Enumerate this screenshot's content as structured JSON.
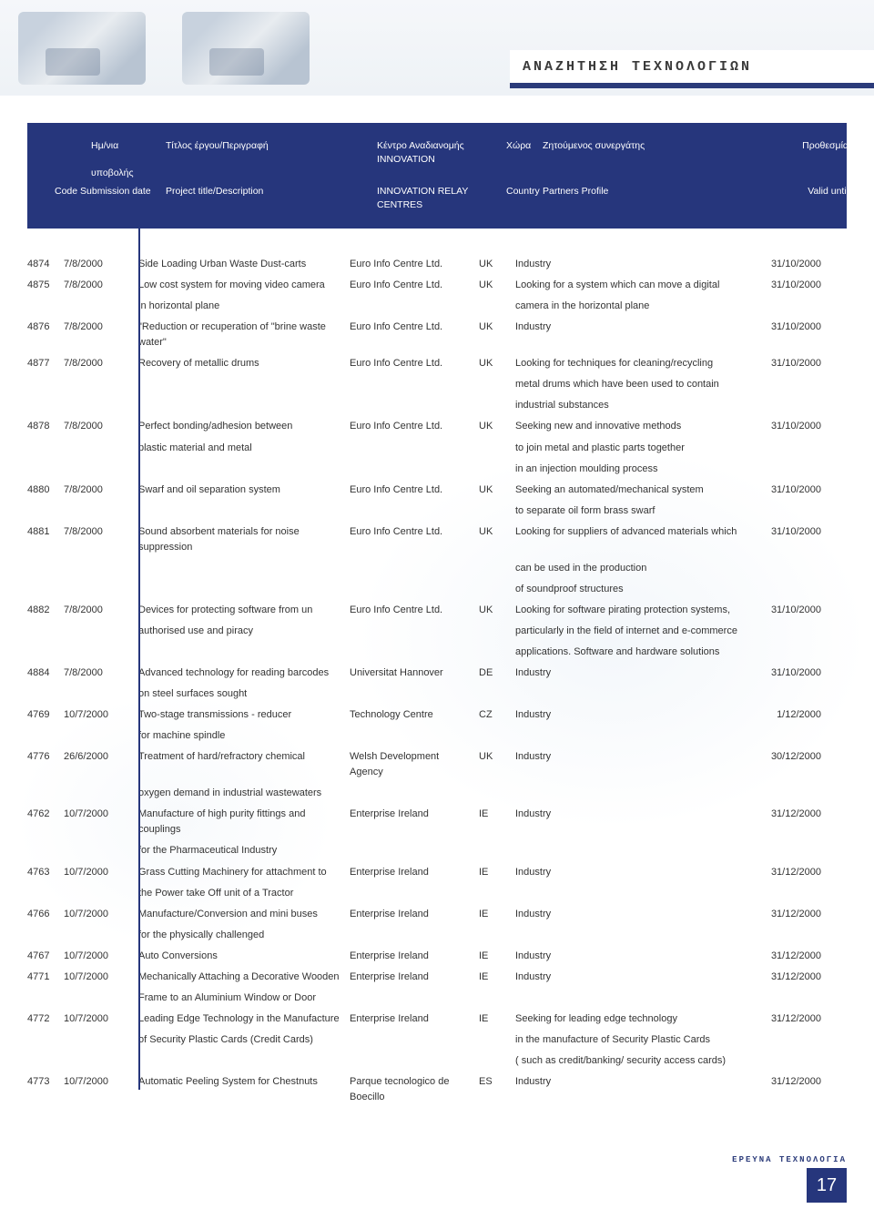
{
  "topTitle": "ΑΝΑΖΗΤΗΣΗ ΤΕΧΝΟΛΟΓΙΩΝ",
  "header": {
    "gr": {
      "codeDate1": "Ημ/νια",
      "codeDate2": "υποβολής",
      "title": "Τίτλος έργου/Περιγραφή",
      "centre": "Κέντρο Αναδιανομής INNOVATION",
      "country": "Χώρα",
      "profile": "Ζητούμενος συνεργάτης",
      "valid": "Προθεσμία"
    },
    "en": {
      "codeDate": "Code Submission date",
      "title": "Project title/Description",
      "centre": "INNOVATION RELAY CENTRES",
      "country": "Country",
      "profile": "Partners Profile",
      "valid": "Valid until"
    }
  },
  "rows": [
    {
      "code": "4874",
      "date": "7/8/2000",
      "title": [
        "Side Loading Urban Waste Dust-carts"
      ],
      "centre": "Euro Info Centre Ltd.",
      "country": "UK",
      "profile": [
        "Industry"
      ],
      "valid": "31/10/2000"
    },
    {
      "code": "4875",
      "date": "7/8/2000",
      "title": [
        "Low cost system for moving video camera",
        "in horizontal plane"
      ],
      "centre": "Euro Info Centre Ltd.",
      "country": "UK",
      "profile": [
        "Looking for a system which can move a digital",
        "camera in the horizontal plane"
      ],
      "valid": "31/10/2000"
    },
    {
      "code": "4876",
      "date": "7/8/2000",
      "title": [
        "\"Reduction or recuperation of \"brine waste water\""
      ],
      "centre": "Euro Info Centre Ltd.",
      "country": "UK",
      "profile": [
        "Industry"
      ],
      "valid": "31/10/2000"
    },
    {
      "code": "4877",
      "date": "7/8/2000",
      "title": [
        "Recovery of metallic drums"
      ],
      "centre": "Euro Info Centre Ltd.",
      "country": "UK",
      "profile": [
        "Looking for techniques for cleaning/recycling",
        "metal drums which have been used to contain",
        "industrial substances"
      ],
      "valid": "31/10/2000"
    },
    {
      "code": "4878",
      "date": "7/8/2000",
      "title": [
        "Perfect bonding/adhesion between",
        "plastic material and metal"
      ],
      "centre": "Euro Info Centre Ltd.",
      "country": "UK",
      "profile": [
        "Seeking new and innovative methods",
        "to join metal and plastic parts together",
        "in an injection moulding process"
      ],
      "valid": "31/10/2000"
    },
    {
      "code": "4880",
      "date": "7/8/2000",
      "title": [
        "Swarf and oil separation system"
      ],
      "centre": "Euro Info Centre Ltd.",
      "country": "UK",
      "profile": [
        "Seeking an automated/mechanical system",
        "to separate oil form brass swarf"
      ],
      "valid": "31/10/2000"
    },
    {
      "code": "4881",
      "date": "7/8/2000",
      "title": [
        "Sound absorbent materials for noise suppression"
      ],
      "centre": "Euro Info Centre Ltd.",
      "country": "UK",
      "profile": [
        "Looking for suppliers of advanced materials which",
        "can be used in the production",
        "of soundproof structures"
      ],
      "valid": "31/10/2000"
    },
    {
      "code": "4882",
      "date": "7/8/2000",
      "title": [
        "Devices for protecting software from un",
        "authorised use and piracy"
      ],
      "centre": "Euro Info Centre Ltd.",
      "country": "UK",
      "profile": [
        "Looking for software pirating protection systems,",
        "particularly in the field of internet and e-commerce",
        "applications. Software and hardware solutions"
      ],
      "valid": "31/10/2000"
    },
    {
      "code": "4884",
      "date": "7/8/2000",
      "title": [
        "Advanced technology for reading barcodes",
        "on steel surfaces sought"
      ],
      "centre": "Universitat Hannover",
      "country": "DE",
      "profile": [
        "Industry"
      ],
      "valid": "31/10/2000"
    },
    {
      "code": "4769",
      "date": "10/7/2000",
      "title": [
        "Two-stage transmissions - reducer",
        "for machine spindle"
      ],
      "centre": "Technology Centre",
      "country": "CZ",
      "profile": [
        "Industry"
      ],
      "valid": "1/12/2000"
    },
    {
      "code": "4776",
      "date": "26/6/2000",
      "title": [
        "Treatment of hard/refractory chemical",
        "oxygen demand in industrial wastewaters"
      ],
      "centre": "Welsh Development Agency",
      "country": "UK",
      "profile": [
        "Industry"
      ],
      "valid": "30/12/2000"
    },
    {
      "code": "4762",
      "date": "10/7/2000",
      "title": [
        "Manufacture of high purity fittings and couplings",
        "for the Pharmaceutical Industry"
      ],
      "centre": "Enterprise Ireland",
      "country": "IE",
      "profile": [
        "Industry"
      ],
      "valid": "31/12/2000"
    },
    {
      "code": "4763",
      "date": "10/7/2000",
      "title": [
        "Grass Cutting Machinery for attachment to",
        "the Power take Off unit of a Tractor"
      ],
      "centre": "Enterprise Ireland",
      "country": "IE",
      "profile": [
        "Industry"
      ],
      "valid": "31/12/2000"
    },
    {
      "code": "4766",
      "date": "10/7/2000",
      "title": [
        "Manufacture/Conversion and mini buses",
        "for the physically challenged"
      ],
      "centre": "Enterprise Ireland",
      "country": "IE",
      "profile": [
        "Industry"
      ],
      "valid": "31/12/2000"
    },
    {
      "code": "4767",
      "date": "10/7/2000",
      "title": [
        "Auto Conversions"
      ],
      "centre": "Enterprise Ireland",
      "country": "IE",
      "profile": [
        "Industry"
      ],
      "valid": "31/12/2000"
    },
    {
      "code": "4771",
      "date": "10/7/2000",
      "title": [
        "Mechanically Attaching a Decorative Wooden",
        "Frame to an Aluminium Window or Door"
      ],
      "centre": "Enterprise Ireland",
      "country": "IE",
      "profile": [
        "Industry"
      ],
      "valid": "31/12/2000"
    },
    {
      "code": "4772",
      "date": "10/7/2000",
      "title": [
        "Leading Edge Technology in the Manufacture",
        "of Security Plastic Cards (Credit Cards)"
      ],
      "centre": "Enterprise Ireland",
      "country": "IE",
      "profile": [
        "Seeking for leading edge technology",
        "in the manufacture of Security Plastic Cards",
        "( such as credit/banking/ security access cards)"
      ],
      "valid": "31/12/2000"
    },
    {
      "code": "4773",
      "date": "10/7/2000",
      "title": [
        "Automatic Peeling System for Chestnuts"
      ],
      "centre": "Parque tecnologico de Boecillo",
      "country": "ES",
      "profile": [
        "Industry"
      ],
      "valid": "31/12/2000"
    }
  ],
  "footerLabel": "ΕΡΕΥΝΑ ΤΕΧΝΟΛΟΓΙΑ",
  "pageNumber": "17"
}
